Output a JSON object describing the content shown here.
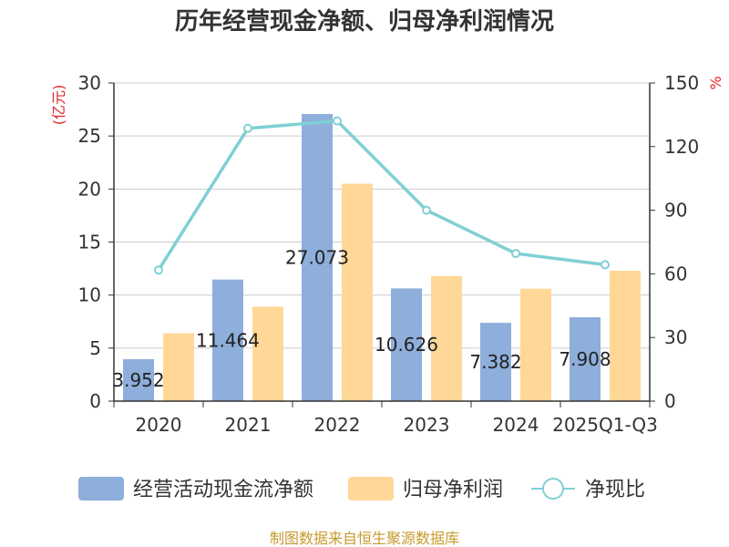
{
  "chart_data": {
    "type": "bar",
    "title": "历年经营现金净额、归母净利润情况",
    "categories": [
      "2020",
      "2021",
      "2022",
      "2023",
      "2024",
      "2025Q1-Q3"
    ],
    "y_left": {
      "unit": "(亿元)",
      "ylim": [
        0,
        30
      ],
      "ticks": [
        "0",
        "5",
        "10",
        "15",
        "20",
        "25",
        "30"
      ]
    },
    "y_right": {
      "unit": "%",
      "ylim": [
        0,
        150
      ],
      "ticks": [
        "0",
        "30",
        "60",
        "90",
        "120",
        "150"
      ]
    },
    "series": [
      {
        "name": "经营活动现金流净额",
        "type": "bar",
        "axis": "left",
        "color": "#8eaedb",
        "values": [
          3.952,
          11.464,
          27.073,
          10.626,
          7.382,
          7.908
        ],
        "labels": [
          "3.952",
          "11.464",
          "27.073",
          "10.626",
          "7.382",
          "7.908"
        ]
      },
      {
        "name": "归母净利润",
        "type": "bar",
        "axis": "left",
        "color": "#ffd797",
        "values": [
          6.4,
          8.9,
          20.5,
          11.8,
          10.6,
          12.3
        ]
      },
      {
        "name": "净现比",
        "type": "line",
        "axis": "right",
        "color": "#7fd0d4",
        "values": [
          61.8,
          128.6,
          132.1,
          90.0,
          69.6,
          64.3
        ]
      }
    ],
    "grid": true,
    "legend": "bottom"
  },
  "source": "制图数据来自恒生聚源数据库"
}
